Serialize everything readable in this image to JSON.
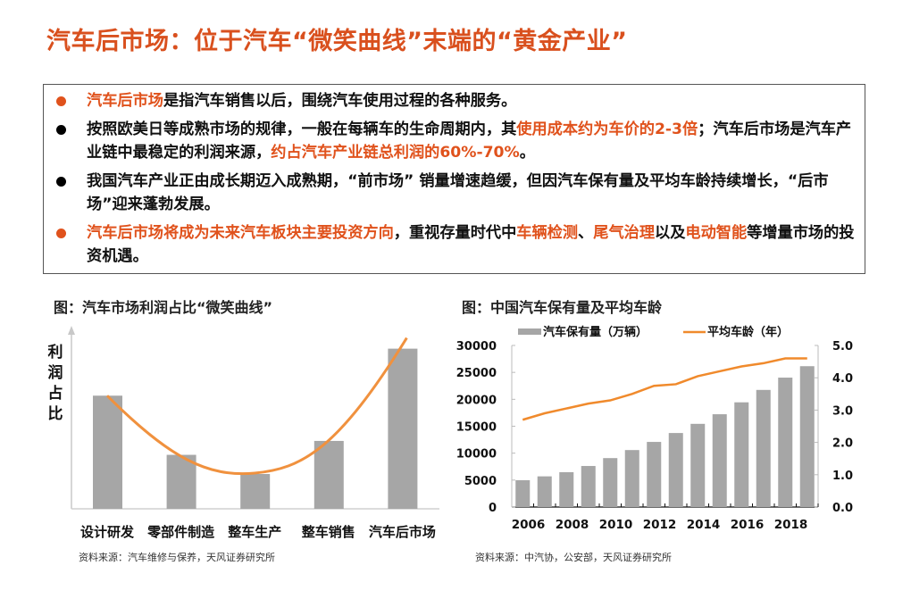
{
  "title": "汽车后市场：位于汽车“微笑曲线”末端的“黄金产业”",
  "bullets": [
    {
      "dot_color": "orange",
      "segments": [
        {
          "text": "汽车后市场",
          "highlight": true
        },
        {
          "text": "是指汽车销售以后，围绕汽车使用过程的各种服务。",
          "highlight": false
        }
      ]
    },
    {
      "dot_color": "black",
      "segments": [
        {
          "text": "按照欧美日等成熟市场的规律，一般在每辆车的生命周期内，其",
          "highlight": false
        },
        {
          "text": "使用成本约为车价的2-3倍",
          "highlight": true
        },
        {
          "text": "；汽车后市场是汽车产业链中最稳定的利润来源，",
          "highlight": false
        },
        {
          "text": "约占汽车产业链总利润的60%-70%",
          "highlight": true
        },
        {
          "text": "。",
          "highlight": false
        }
      ]
    },
    {
      "dot_color": "black",
      "segments": [
        {
          "text": "我国汽车产业正由成长期迈入成熟期，“前市场” 销量增速趋缓，但因汽车保有量及平均车龄持续增长，“后市场”迎来蓬勃发展。",
          "highlight": false
        }
      ]
    },
    {
      "dot_color": "orange",
      "segments": [
        {
          "text": "汽车后市场将成为未来汽车板块主要投资方向",
          "highlight": true
        },
        {
          "text": "，重视存量时代中",
          "highlight": false
        },
        {
          "text": "车辆检测",
          "highlight": true
        },
        {
          "text": "、",
          "highlight": false
        },
        {
          "text": "尾气治理",
          "highlight": true
        },
        {
          "text": "以及",
          "highlight": false
        },
        {
          "text": "电动智能",
          "highlight": true
        },
        {
          "text": "等增量市场的投资机遇。",
          "highlight": false
        }
      ]
    }
  ],
  "colors": {
    "accent": "#e0521c",
    "title": "#d9501e",
    "bar": "#a6a6a6",
    "line": "#f08a2c",
    "smile_line": "#f0913e"
  },
  "chart_data": [
    {
      "type": "bar",
      "title": "图：汽车市场利润占比“微笑曲线”",
      "ylabel": "利润占比",
      "xlabel": "",
      "categories": [
        "设计研发",
        "零部件制造",
        "整车生产",
        "整车销售",
        "汽车后市场"
      ],
      "values": [
        65,
        31,
        20,
        39,
        92
      ],
      "overlay": {
        "type": "smooth-line",
        "name": "微笑曲线",
        "values": [
          65,
          31,
          20,
          39,
          92
        ]
      },
      "grid": false,
      "y_ticks_shown": false,
      "source": "资料来源：汽车维修与保养，天风证券研究所"
    },
    {
      "type": "bar",
      "title": "图：中国汽车保有量及平均车龄",
      "x": [
        2006,
        2007,
        2008,
        2009,
        2010,
        2011,
        2012,
        2013,
        2014,
        2015,
        2016,
        2017,
        2018,
        2019
      ],
      "x_tick_labels": [
        "2006",
        "2008",
        "2010",
        "2012",
        "2014",
        "2016",
        "2018"
      ],
      "series": [
        {
          "name": "汽车保有量（万辆）",
          "type": "bar",
          "axis": "left",
          "values": [
            4985,
            5697,
            6467,
            7619,
            9086,
            10578,
            12089,
            13741,
            15447,
            17228,
            19440,
            21743,
            24028,
            26150
          ]
        },
        {
          "name": "平均车龄（年）",
          "type": "line",
          "axis": "right",
          "values": [
            2.7,
            2.9,
            3.05,
            3.2,
            3.3,
            3.5,
            3.75,
            3.8,
            4.05,
            4.2,
            4.35,
            4.45,
            4.6,
            4.6
          ]
        }
      ],
      "y_left": {
        "ticks": [
          "0",
          "5000",
          "10000",
          "15000",
          "20000",
          "25000",
          "30000"
        ],
        "range": [
          0,
          30000
        ]
      },
      "y_right": {
        "ticks": [
          "0.0",
          "1.0",
          "2.0",
          "3.0",
          "4.0",
          "5.0"
        ],
        "range": [
          0,
          5
        ]
      },
      "legend": {
        "position": "top",
        "items": [
          "汽车保有量（万辆）",
          "平均车龄（年）"
        ]
      },
      "grid": false,
      "source": "资料来源：中汽协，公安部，天风证券研究所"
    }
  ]
}
